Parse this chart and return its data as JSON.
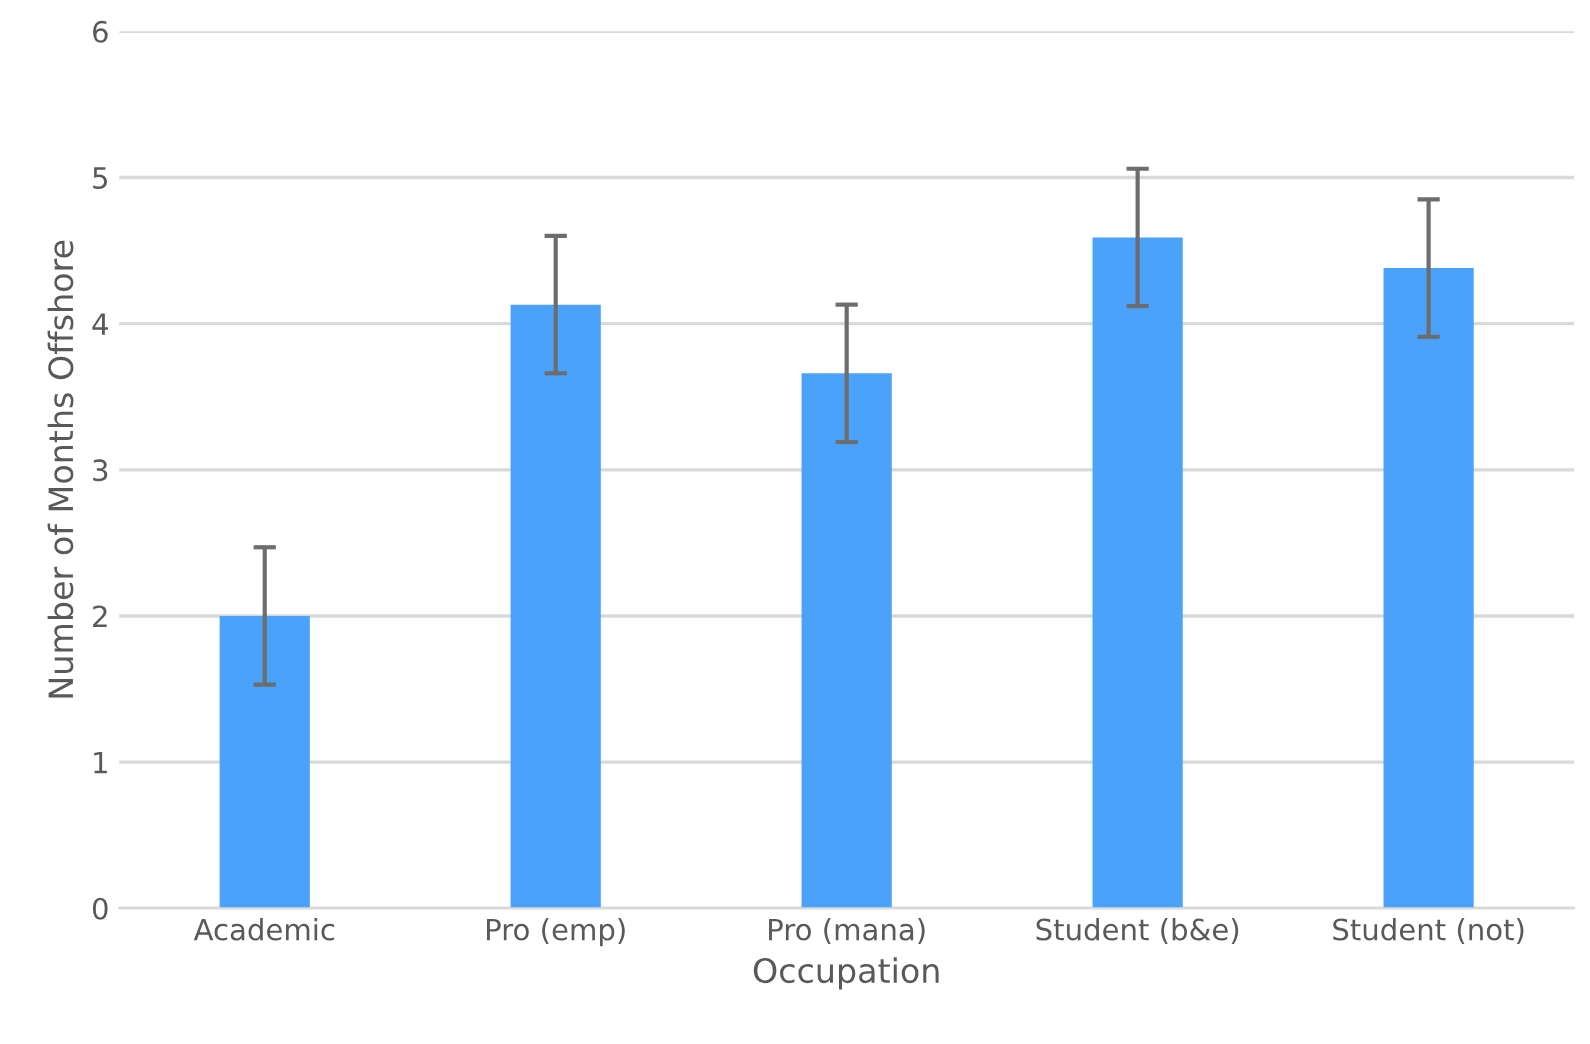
{
  "chart_data": {
    "type": "bar",
    "xlabel": "Occupation",
    "ylabel": "Number of Months Offshore",
    "categories": [
      "Academic",
      "Pro (emp)",
      "Pro (mana)",
      "Student (b&e)",
      "Student (not)"
    ],
    "values": [
      2.0,
      4.13,
      3.66,
      4.59,
      4.38
    ],
    "errors": [
      0.47,
      0.47,
      0.47,
      0.47,
      0.47
    ],
    "color": "#4aa2fa",
    "ylim": [
      0,
      6
    ],
    "yticks": [
      0,
      1,
      2,
      3,
      4,
      5,
      6
    ],
    "grid": "y",
    "legend": false
  }
}
